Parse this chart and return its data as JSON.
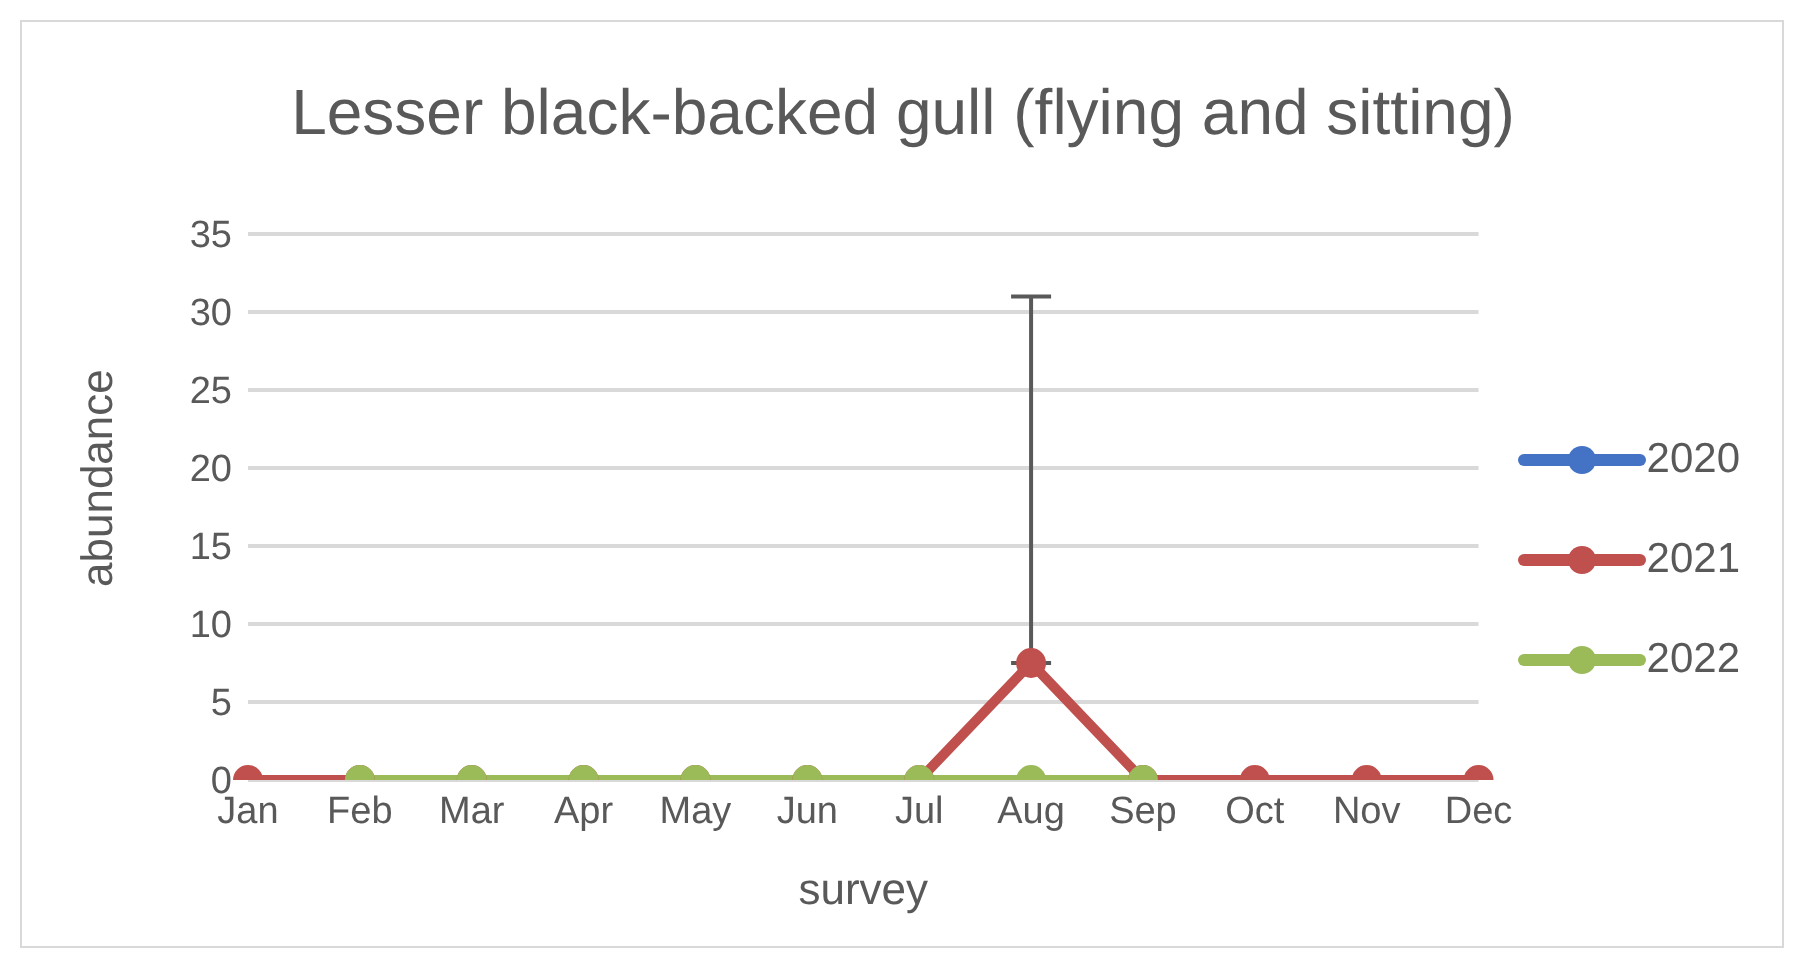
{
  "chart_data": {
    "type": "line",
    "title": "Lesser black-backed gull (flying and sitting)",
    "xlabel": "survey",
    "ylabel": "abundance",
    "categories": [
      "Jan",
      "Feb",
      "Mar",
      "Apr",
      "May",
      "Jun",
      "Jul",
      "Aug",
      "Sep",
      "Oct",
      "Nov",
      "Dec"
    ],
    "series": [
      {
        "name": "2020",
        "color": "#4472c4",
        "values": [
          null,
          null,
          null,
          null,
          null,
          null,
          null,
          null,
          null,
          null,
          null,
          null
        ]
      },
      {
        "name": "2021",
        "color": "#c0504d",
        "values": [
          0,
          0,
          0,
          0,
          0,
          0,
          0,
          7.5,
          0,
          0,
          0,
          0
        ],
        "errors": [
          null,
          null,
          null,
          null,
          null,
          null,
          null,
          [
            7.5,
            31
          ],
          null,
          null,
          null,
          null
        ]
      },
      {
        "name": "2022",
        "color": "#9bbb59",
        "values": [
          null,
          0,
          0,
          0,
          0,
          0,
          0,
          0,
          0,
          null,
          null,
          null
        ]
      }
    ],
    "ylim": [
      0,
      35
    ],
    "yticks": [
      0,
      5,
      10,
      15,
      20,
      25,
      30,
      35
    ],
    "grid": "y",
    "legend": "right",
    "marker": "circle",
    "line_style": "solid"
  }
}
